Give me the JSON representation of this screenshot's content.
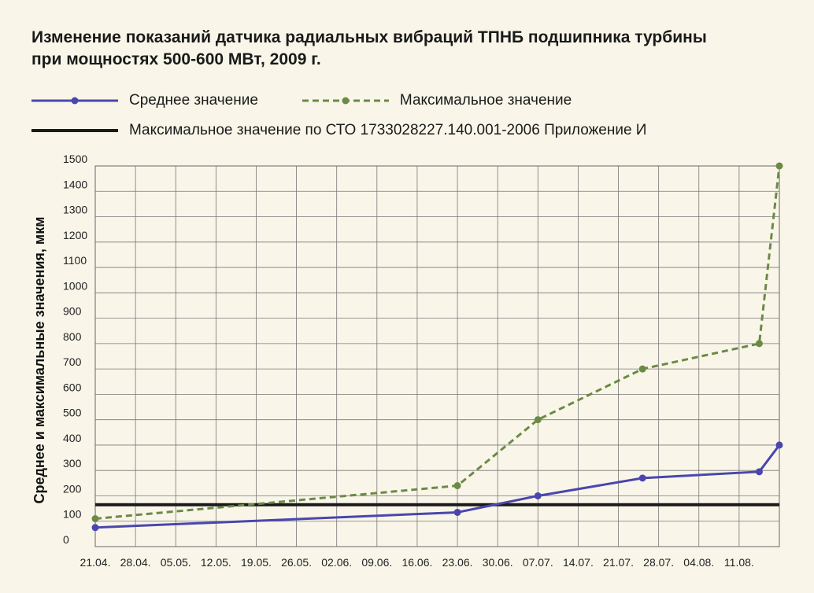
{
  "chart_data": {
    "type": "line",
    "title": "Изменение показаний датчика радиальных вибраций ТПНБ подшипника турбины при мощностях 500-600 МВт, 2009 г.",
    "ylabel": "Среднее и максимальные значения, мкм",
    "xlabel": "",
    "ylim": [
      0,
      1500
    ],
    "yticks": [
      0,
      100,
      200,
      300,
      400,
      500,
      600,
      700,
      800,
      900,
      1000,
      1100,
      1200,
      1300,
      1400,
      1500
    ],
    "categories": [
      "21.04.",
      "28.04.",
      "05.05.",
      "12.05.",
      "19.05.",
      "26.05.",
      "02.06.",
      "09.06.",
      "16.06.",
      "23.06.",
      "30.06.",
      "07.07.",
      "14.07.",
      "21.07.",
      "28.07.",
      "04.08.",
      "11.08."
    ],
    "grid": true,
    "legend_position": "top",
    "series": [
      {
        "name": "Среднее значение",
        "color": "#4a46ae",
        "style": "solid-markers",
        "x": [
          0,
          9,
          11,
          13.6,
          16.5,
          17
        ],
        "values": [
          75,
          135,
          200,
          270,
          295,
          400
        ]
      },
      {
        "name": "Максимальное значение",
        "color": "#6b8a46",
        "style": "dashed-markers",
        "x": [
          0,
          9,
          11,
          13.6,
          16.5,
          17
        ],
        "values": [
          110,
          240,
          500,
          700,
          800,
          1500
        ]
      }
    ],
    "reference_lines": [
      {
        "name": "Максимальное значение по СТО 1733028227.140.001-2006 Приложение И",
        "color": "#1a1a1a",
        "value": 165
      }
    ]
  }
}
